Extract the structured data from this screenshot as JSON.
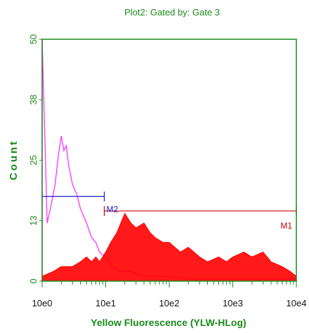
{
  "colors": {
    "frame": "#1a8a1a",
    "label": "#1a8a1a",
    "tick_text": "#111111",
    "series_gate3": "#ff0000",
    "series_ungated": "#ff33ff",
    "marker_m1": "#cc0000",
    "marker_m2": "#1a1acc"
  },
  "chart_data": {
    "type": "histogram",
    "title": "Plot2:  Gated by: Gate 3",
    "xlabel": "Yellow Fluorescence (YLW-HLog)",
    "ylabel": "Count",
    "x_scale": "log",
    "xlim": [
      1,
      10000
    ],
    "ylim": [
      0,
      50
    ],
    "x_ticks": [
      "10e0",
      "10e1",
      "10e2",
      "10e3",
      "10e4"
    ],
    "y_ticks": [
      "0",
      "13",
      "25",
      "38",
      "50"
    ],
    "grid": false,
    "series": [
      {
        "color": "#ff33ff",
        "x": [
          1.0,
          1.2,
          1.4,
          1.6,
          1.8,
          2.0,
          2.2,
          2.4,
          2.6,
          2.8,
          3.0,
          3.5,
          4.0,
          5.0,
          6.0,
          7.0,
          8.0,
          10.0,
          13.0,
          17.0,
          25.0,
          40.0,
          60.0,
          100.0,
          200.0,
          400.0,
          1000.0,
          3000.0,
          10000.0
        ],
        "values": [
          50,
          12,
          16,
          20,
          26,
          30,
          27,
          28,
          24,
          22,
          20,
          18,
          15,
          12,
          9,
          8,
          6,
          5,
          3,
          2,
          2,
          1,
          1,
          1,
          0.5,
          0.5,
          0.5,
          0.5,
          0.5
        ]
      },
      {
        "color": "#ff0000",
        "x": [
          1.0,
          1.5,
          2.0,
          3.0,
          4.0,
          5.0,
          6.0,
          7.0,
          8.0,
          10.0,
          12.0,
          15.0,
          20.0,
          25.0,
          30.0,
          40.0,
          50.0,
          60.0,
          80.0,
          100.0,
          150.0,
          200.0,
          300.0,
          400.0,
          600.0,
          800.0,
          1000.0,
          1500.0,
          2000.0,
          3000.0,
          4000.0,
          6000.0,
          8000.0,
          10000.0
        ],
        "values": [
          1,
          2,
          3,
          3,
          4,
          5,
          4,
          5,
          4,
          6,
          8,
          10,
          14,
          12,
          11,
          12,
          10,
          9,
          8,
          8,
          6,
          7,
          5,
          4,
          5,
          4,
          5,
          6,
          5,
          6,
          4,
          3,
          2,
          1
        ]
      }
    ],
    "markers": [
      {
        "label": "M1",
        "x_range": [
          9.5,
          10000
        ],
        "y": 14.5,
        "color": "#cc0000"
      },
      {
        "label": "M2",
        "x_range": [
          1,
          9.5
        ],
        "y": 17.5,
        "color": "#1a1acc"
      }
    ]
  }
}
